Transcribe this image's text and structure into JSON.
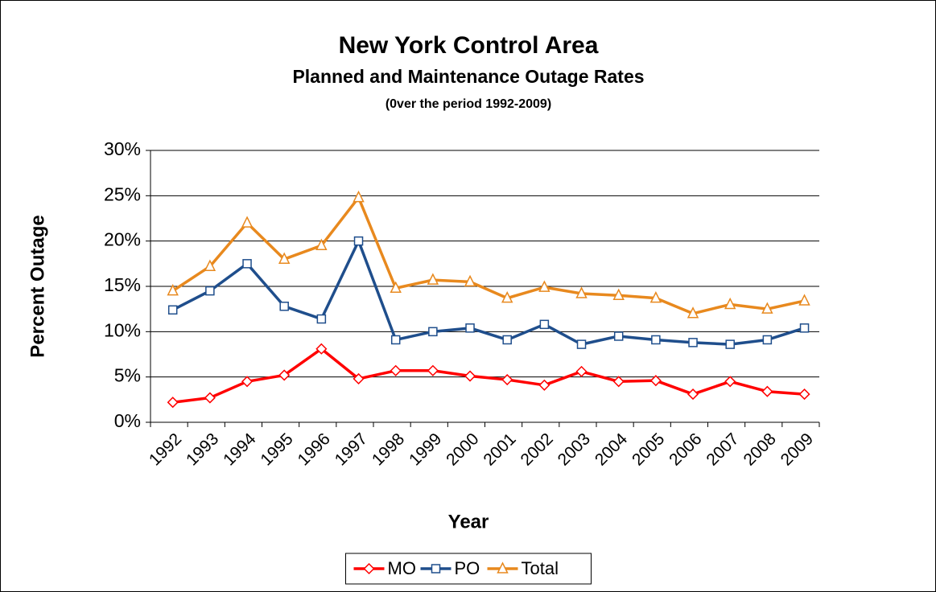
{
  "chart_data": {
    "type": "line",
    "title": "New York Control Area",
    "subtitle": "Planned and Maintenance Outage Rates",
    "annotations": [
      "(0ver the period 1992-2009)"
    ],
    "x_label": "Year",
    "y_label": "Percent Outage",
    "categories": [
      "1992",
      "1993",
      "1994",
      "1995",
      "1996",
      "1997",
      "1998",
      "1999",
      "2000",
      "2001",
      "2002",
      "2003",
      "2004",
      "2005",
      "2006",
      "2007",
      "2008",
      "2009"
    ],
    "series": [
      {
        "name": "MO",
        "color": "#ff0000",
        "marker": "diamond",
        "values": [
          2.2,
          2.7,
          4.5,
          5.2,
          8.1,
          4.8,
          5.7,
          5.7,
          5.1,
          4.7,
          4.1,
          5.6,
          4.5,
          4.6,
          3.1,
          4.5,
          3.4,
          3.1
        ]
      },
      {
        "name": "PO",
        "color": "#1f4e8c",
        "marker": "square",
        "values": [
          12.4,
          14.5,
          17.5,
          12.8,
          11.4,
          20.0,
          9.1,
          10.0,
          10.4,
          9.1,
          10.8,
          8.6,
          9.5,
          9.1,
          8.8,
          8.6,
          9.1,
          10.4
        ]
      },
      {
        "name": "Total",
        "color": "#e8891e",
        "marker": "triangle",
        "values": [
          14.5,
          17.2,
          22.0,
          18.0,
          19.5,
          24.8,
          14.8,
          15.7,
          15.5,
          13.7,
          14.9,
          14.2,
          14.0,
          13.7,
          12.0,
          13.0,
          12.5,
          13.4
        ]
      }
    ],
    "ylim": [
      0,
      30
    ],
    "yticks": [
      {
        "value": 0,
        "label": "0%"
      },
      {
        "value": 5,
        "label": "5%"
      },
      {
        "value": 10,
        "label": "10%"
      },
      {
        "value": 15,
        "label": "15%"
      },
      {
        "value": 20,
        "label": "20%"
      },
      {
        "value": 25,
        "label": "25%"
      },
      {
        "value": 30,
        "label": "30%"
      }
    ],
    "grid": true,
    "legend": "bottom"
  }
}
